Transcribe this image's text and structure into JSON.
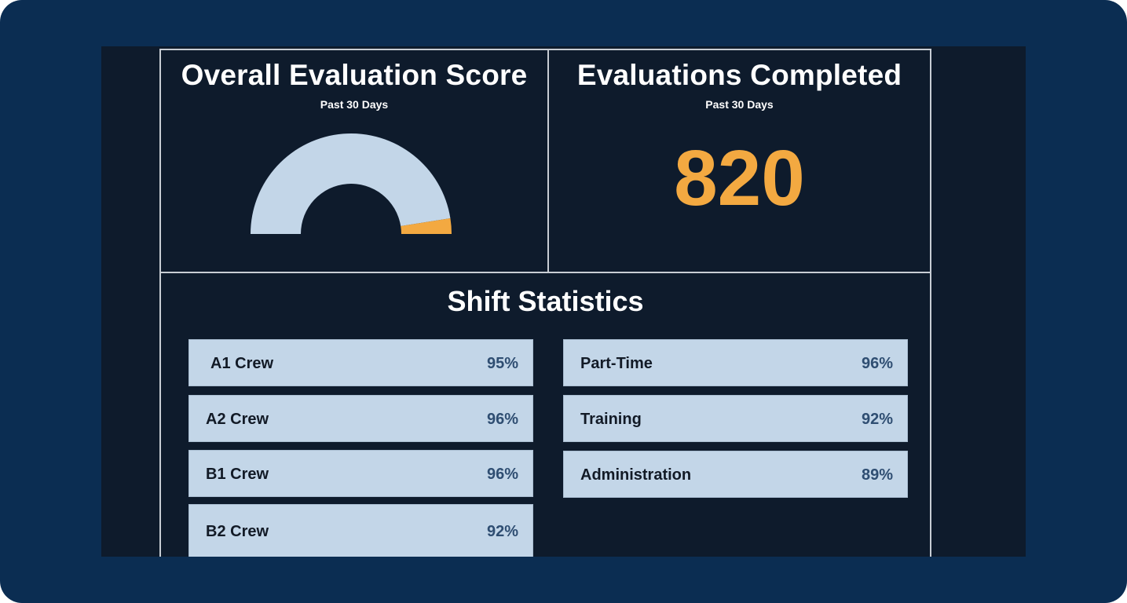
{
  "score_panel": {
    "title": "Overall Evaluation Score",
    "subtitle": "Past 30 Days",
    "gauge": {
      "fill_fraction": 0.05,
      "track_color": "#c3d6e8",
      "fill_color": "#f3a941"
    }
  },
  "completed_panel": {
    "title": "Evaluations Completed",
    "subtitle": "Past 30 Days",
    "value": "820",
    "value_color": "#f3a941"
  },
  "shift_panel": {
    "title": "Shift Statistics",
    "left_column": [
      {
        "name": " A1 Crew",
        "value": "95%"
      },
      {
        "name": "A2 Crew",
        "value": "96%"
      },
      {
        "name": "B1 Crew",
        "value": "96%"
      },
      {
        "name": "B2 Crew",
        "value": "92%"
      }
    ],
    "right_column": [
      {
        "name": "Part-Time",
        "value": "96%"
      },
      {
        "name": "Training",
        "value": "92%"
      },
      {
        "name": "Administration",
        "value": "89%"
      }
    ]
  },
  "colors": {
    "frame": "#0b2d52",
    "screen": "#0e1b2c",
    "row_background": "#c3d6e8",
    "accent": "#f3a941"
  }
}
